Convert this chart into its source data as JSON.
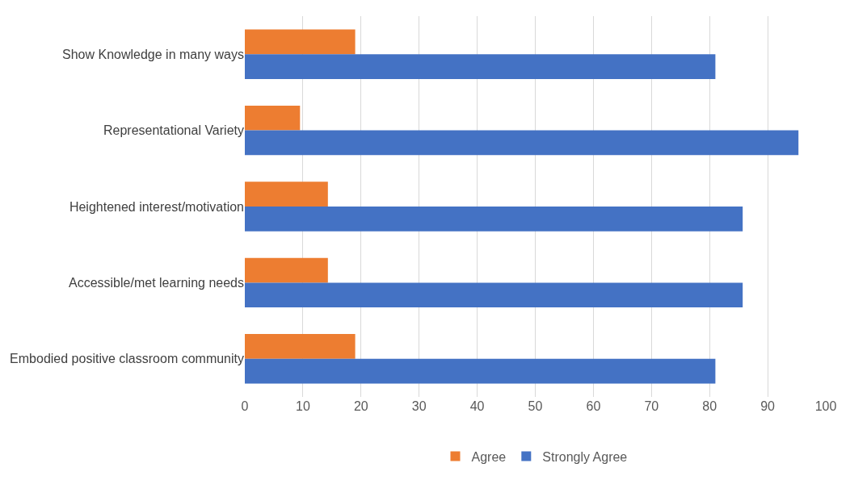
{
  "chart_data": {
    "type": "bar",
    "orientation": "horizontal",
    "categories": [
      "Show Knowledge in many ways",
      "Representational Variety",
      "Heightened interest/motivation",
      "Accessible/met learning needs",
      "Embodied positive classroom community"
    ],
    "series": [
      {
        "name": "Agree",
        "color": "#ed7d31",
        "values": [
          19,
          9.5,
          14.3,
          14.3,
          19
        ]
      },
      {
        "name": "Strongly Agree",
        "color": "#4472c4",
        "values": [
          81,
          95.3,
          85.7,
          85.7,
          81
        ]
      }
    ],
    "xlim": [
      0,
      100
    ],
    "xticks": [
      0,
      10,
      20,
      30,
      40,
      50,
      60,
      70,
      80,
      90,
      100
    ],
    "grid": "x",
    "legend": "bottom"
  }
}
